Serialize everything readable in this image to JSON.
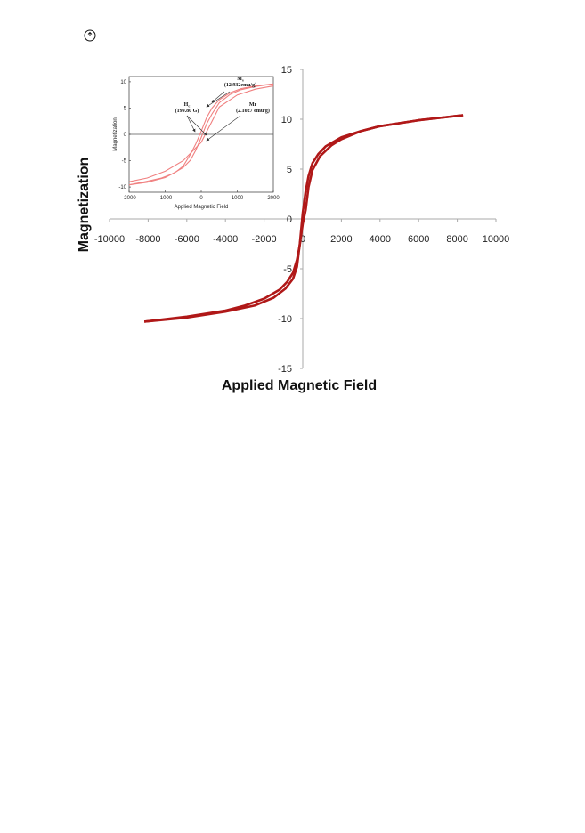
{
  "page_icon": "circled-arrow-icon",
  "chart_data": [
    {
      "type": "line",
      "title": "",
      "xlabel": "Applied Magnetic Field",
      "ylabel": "Magnetization",
      "xlim": [
        -10000,
        10000
      ],
      "ylim": [
        -15,
        15
      ],
      "xticks": [
        "-10000",
        "-8000",
        "-6000",
        "-4000",
        "-2000",
        "0",
        "2000",
        "4000",
        "6000",
        "8000",
        "10000"
      ],
      "yticks": [
        "15",
        "10",
        "5",
        "0",
        "-5",
        "-10",
        "-15"
      ],
      "line_color": "#b01818",
      "series": [
        {
          "x": [
            -8200,
            -6000,
            -4000,
            -2500,
            -1500,
            -900,
            -500,
            -300,
            -150,
            0,
            150,
            300,
            500,
            800,
            1200,
            2000,
            3000,
            4000,
            6000,
            8300
          ],
          "y": [
            -10.3,
            -9.9,
            -9.3,
            -8.7,
            -7.9,
            -7.0,
            -6.0,
            -4.8,
            -2.5,
            0.6,
            2.8,
            4.3,
            5.6,
            6.5,
            7.3,
            8.2,
            8.8,
            9.3,
            9.9,
            10.4
          ]
        },
        {
          "x": [
            8300,
            6000,
            4000,
            3000,
            2000,
            1500,
            900,
            500,
            300,
            150,
            0,
            -150,
            -300,
            -500,
            -800,
            -1200,
            -2000,
            -3000,
            -4000,
            -6000,
            -8200
          ],
          "y": [
            10.4,
            9.9,
            9.3,
            8.8,
            8.0,
            7.4,
            6.3,
            4.9,
            3.2,
            0.9,
            -0.5,
            -2.6,
            -4.1,
            -5.4,
            -6.3,
            -7.1,
            -8.0,
            -8.7,
            -9.2,
            -9.8,
            -10.3
          ]
        }
      ]
    },
    {
      "type": "line",
      "title": "",
      "xlabel": "Applied Magnetic Field",
      "ylabel": "Magnetization",
      "xlim": [
        -2000,
        2000
      ],
      "ylim": [
        -11,
        11
      ],
      "xticks": [
        "-2000",
        "-1000",
        "0",
        "1000",
        "2000"
      ],
      "yticks": [
        "10",
        "5",
        "0",
        "-5",
        "-10"
      ],
      "line_color": "#f08080",
      "series": [
        {
          "x": [
            -2000,
            -1500,
            -1000,
            -700,
            -500,
            -300,
            -150,
            0,
            150,
            300,
            500,
            800,
            1100,
            1500,
            2000
          ],
          "y": [
            -9.6,
            -9.1,
            -8.2,
            -7.1,
            -6.0,
            -3.8,
            -1.8,
            0.6,
            3.2,
            5.0,
            6.6,
            7.9,
            8.7,
            9.2,
            9.6
          ]
        },
        {
          "x": [
            2000,
            1500,
            1100,
            800,
            500,
            300,
            150,
            0,
            -150,
            -300,
            -500,
            -800,
            -1100,
            -1500,
            -2000
          ],
          "y": [
            9.6,
            9.1,
            8.5,
            7.6,
            6.0,
            3.9,
            2.0,
            -0.6,
            -3.0,
            -4.9,
            -6.3,
            -7.5,
            -8.3,
            -8.9,
            -9.6
          ]
        },
        {
          "x": [
            -2000,
            -1500,
            -1000,
            -500,
            0,
            500,
            1000,
            1500,
            2000
          ],
          "y": [
            -9.0,
            -8.3,
            -7.0,
            -5.0,
            -1.5,
            5.2,
            7.5,
            8.6,
            9.2
          ]
        }
      ],
      "annotations": [
        {
          "label": "M",
          "sub": "s",
          "value": "(12.932emu/g)"
        },
        {
          "label": "H",
          "sub": "c",
          "value": "(199.80 G)"
        },
        {
          "label": "Mr",
          "sub": "",
          "value": "(2.1027 emu/g)"
        }
      ]
    }
  ]
}
